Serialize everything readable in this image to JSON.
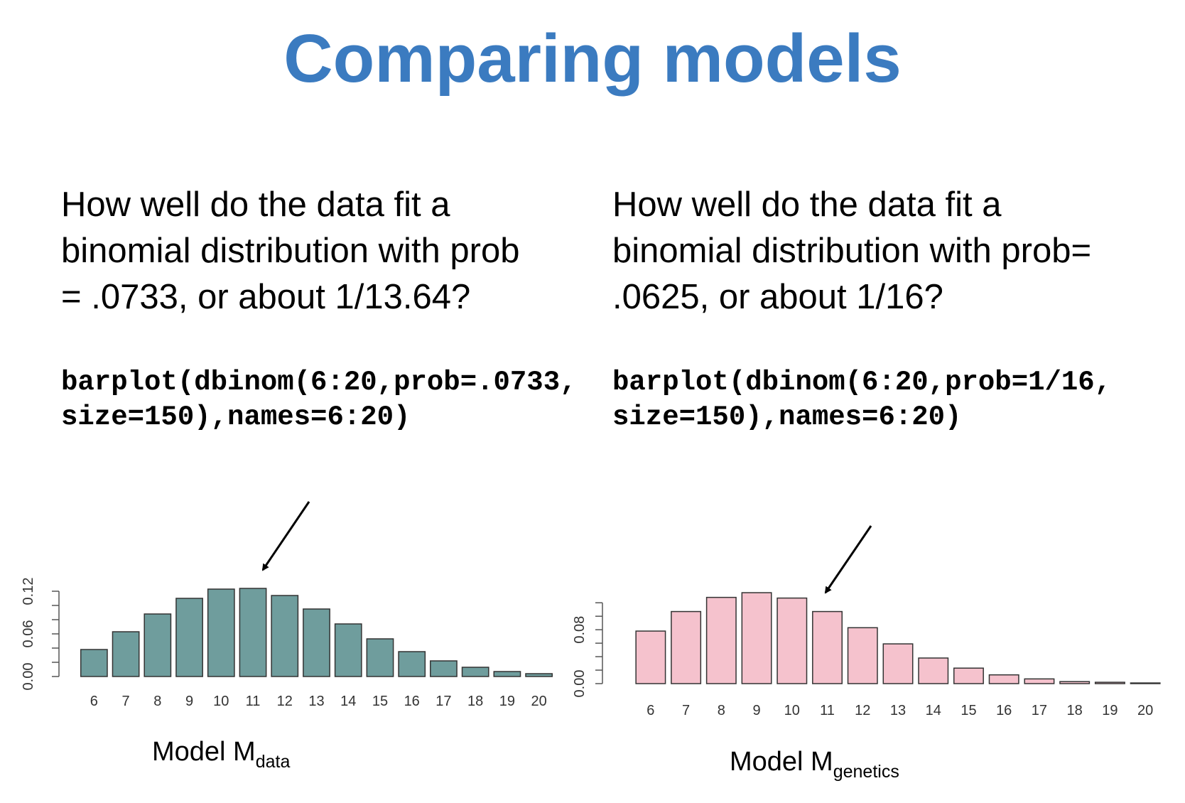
{
  "title": "Comparing models",
  "panels": [
    {
      "question": [
        "How well do the data fit a",
        "binomial distribution with prob",
        "= .0733, or about 1/13.64?"
      ],
      "code": [
        "barplot(dbinom(6:20,prob=.0733,",
        "size=150),names=6:20)"
      ]
    },
    {
      "question": [
        "How well do the data fit a",
        "binomial distribution with prob=",
        ".0625, or about 1/16?"
      ],
      "code": [
        "barplot(dbinom(6:20,prob=1/16,",
        "size=150),names=6:20)"
      ]
    }
  ],
  "chart_data": [
    {
      "type": "bar",
      "caption": "Model M",
      "caption_subscript": "data",
      "categories": [
        "6",
        "7",
        "8",
        "9",
        "10",
        "11",
        "12",
        "13",
        "14",
        "15",
        "16",
        "17",
        "18",
        "19",
        "20"
      ],
      "values": [
        0.038,
        0.063,
        0.088,
        0.11,
        0.123,
        0.124,
        0.114,
        0.095,
        0.074,
        0.053,
        0.035,
        0.022,
        0.013,
        0.007,
        0.004
      ],
      "color": "#6f9d9d",
      "ylim": [
        0,
        0.124
      ],
      "yticks": [
        {
          "value": 0,
          "label": "0.00"
        },
        {
          "value": 0.06,
          "label": "0.06"
        },
        {
          "value": 0.12,
          "label": "0.12"
        }
      ],
      "minor_yticks": [
        0.02,
        0.04,
        0.08,
        0.1
      ]
    },
    {
      "type": "bar",
      "caption": "Model M",
      "caption_subscript": "genetics",
      "categories": [
        "6",
        "7",
        "8",
        "9",
        "10",
        "11",
        "12",
        "13",
        "14",
        "15",
        "16",
        "17",
        "18",
        "19",
        "20"
      ],
      "values": [
        0.078,
        0.107,
        0.128,
        0.135,
        0.127,
        0.107,
        0.083,
        0.059,
        0.038,
        0.023,
        0.013,
        0.007,
        0.003,
        0.002,
        0.001
      ],
      "color": "#f5c2cd",
      "ylim": [
        0,
        0.135
      ],
      "yticks": [
        {
          "value": 0,
          "label": "0.00"
        },
        {
          "value": 0.08,
          "label": "0.08"
        }
      ],
      "minor_yticks": [
        0.02,
        0.04,
        0.06,
        0.1,
        0.12
      ]
    }
  ]
}
